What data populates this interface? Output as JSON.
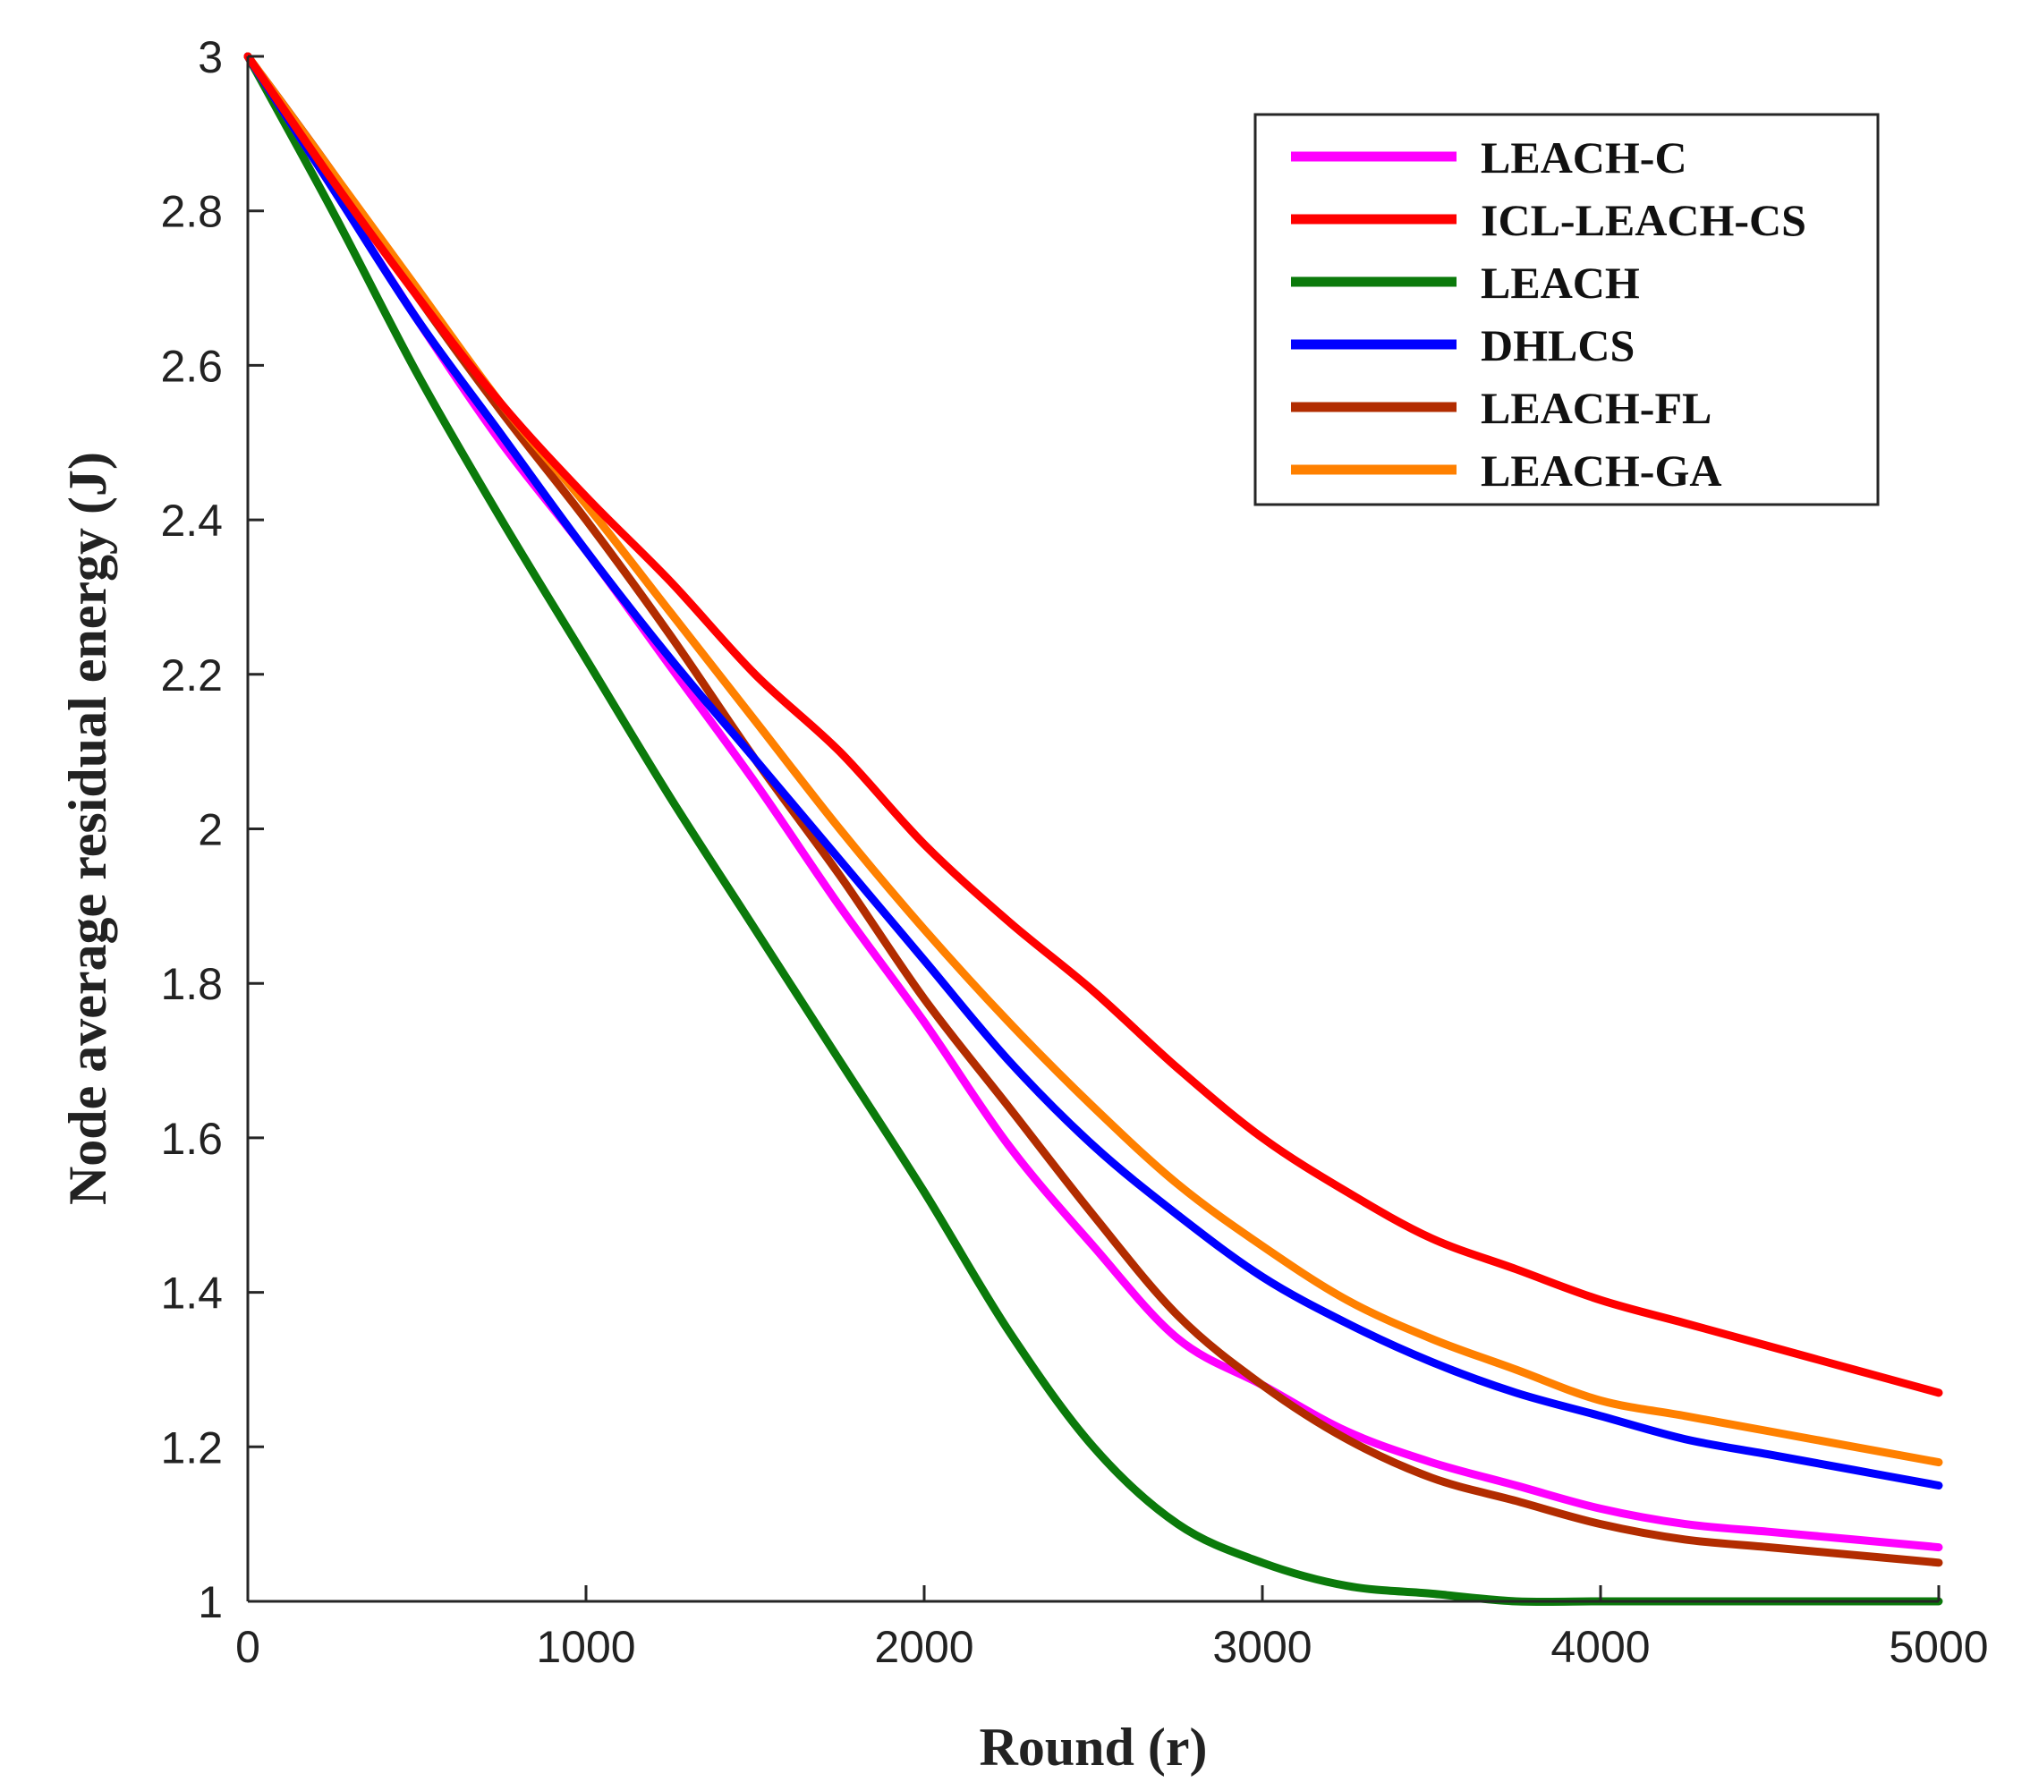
{
  "chart_data": {
    "type": "line",
    "title": "",
    "xlabel": "Round (r)",
    "ylabel": "Node average residual energy (J)",
    "xlim": [
      0,
      5000
    ],
    "ylim": [
      1,
      3
    ],
    "xticks": [
      0,
      1000,
      2000,
      3000,
      4000,
      5000
    ],
    "xtick_labels": [
      "0",
      "1000",
      "2000",
      "3000",
      "4000",
      "5000"
    ],
    "yticks": [
      1,
      1.2,
      1.4,
      1.6,
      1.8,
      2,
      2.2,
      2.4,
      2.6,
      2.8,
      3
    ],
    "ytick_labels": [
      "1",
      "1.2",
      "1.4",
      "1.6",
      "1.8",
      "2",
      "2.2",
      "2.4",
      "2.6",
      "2.8",
      "3"
    ],
    "grid": false,
    "legend_position": "top-right",
    "x": [
      0,
      250,
      500,
      750,
      1000,
      1250,
      1500,
      1750,
      2000,
      2250,
      2500,
      2750,
      3000,
      3250,
      3500,
      3750,
      4000,
      4250,
      4500,
      4750,
      5000
    ],
    "series": [
      {
        "name": "LEACH-C",
        "color": "#FF00FF",
        "values": [
          3.0,
          2.83,
          2.66,
          2.5,
          2.36,
          2.21,
          2.06,
          1.9,
          1.75,
          1.59,
          1.46,
          1.34,
          1.28,
          1.22,
          1.18,
          1.15,
          1.12,
          1.1,
          1.09,
          1.08,
          1.07
        ]
      },
      {
        "name": "ICL-LEACH-CS",
        "color": "#FF0000",
        "values": [
          3.0,
          2.84,
          2.69,
          2.55,
          2.43,
          2.32,
          2.2,
          2.1,
          1.98,
          1.88,
          1.79,
          1.69,
          1.6,
          1.53,
          1.47,
          1.43,
          1.39,
          1.36,
          1.33,
          1.3,
          1.27
        ]
      },
      {
        "name": "LEACH",
        "color": "#0B7A0B",
        "values": [
          3.0,
          2.8,
          2.59,
          2.4,
          2.22,
          2.04,
          1.87,
          1.7,
          1.53,
          1.35,
          1.2,
          1.1,
          1.05,
          1.02,
          1.01,
          1.0,
          1.0,
          1.0,
          1.0,
          1.0,
          1.0
        ]
      },
      {
        "name": "DHLCS",
        "color": "#0000FF",
        "values": [
          3.0,
          2.83,
          2.66,
          2.51,
          2.36,
          2.22,
          2.09,
          1.96,
          1.83,
          1.7,
          1.59,
          1.5,
          1.42,
          1.36,
          1.31,
          1.27,
          1.24,
          1.21,
          1.19,
          1.17,
          1.15
        ]
      },
      {
        "name": "LEACH-FL",
        "color": "#B22C00",
        "values": [
          3.0,
          2.85,
          2.69,
          2.54,
          2.4,
          2.25,
          2.09,
          1.94,
          1.78,
          1.64,
          1.5,
          1.37,
          1.28,
          1.21,
          1.16,
          1.13,
          1.1,
          1.08,
          1.07,
          1.06,
          1.05
        ]
      },
      {
        "name": "LEACH-GA",
        "color": "#FF8000",
        "values": [
          3.0,
          2.85,
          2.7,
          2.55,
          2.42,
          2.28,
          2.14,
          2.0,
          1.87,
          1.75,
          1.64,
          1.54,
          1.46,
          1.39,
          1.34,
          1.3,
          1.26,
          1.24,
          1.22,
          1.2,
          1.18
        ]
      }
    ]
  }
}
